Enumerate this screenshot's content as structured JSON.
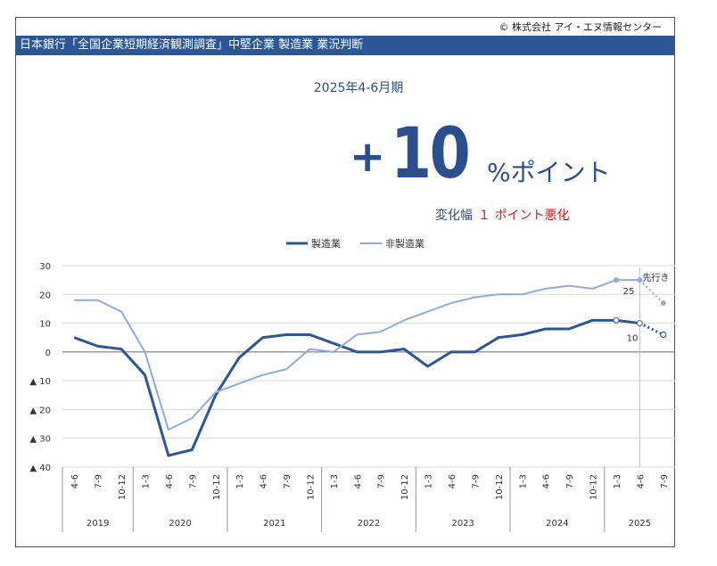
{
  "copyright": "© 株式会社 アイ・エヌ情報センター",
  "header_title": "日本銀行「全国企業短期経済観測調査」中堅企業 製造業 業況判断",
  "headline": {
    "period": "2025年4-6月期",
    "sign": "+",
    "value": "10",
    "unit": "%ポイント",
    "change_label": "変化幅",
    "change_value": "１ ポイント悪化"
  },
  "colors": {
    "header_bg": "#2b5797",
    "manufacturing": "#2e5597",
    "non_manufacturing": "#8faadc",
    "deterioration": "#d9141c"
  },
  "chart_data": {
    "type": "line",
    "ylim": [
      -40,
      30
    ],
    "yticks": [
      30,
      20,
      10,
      0,
      -10,
      -20,
      -30,
      -40
    ],
    "ytick_labels": [
      "30",
      "20",
      "10",
      "0",
      "▲ 10",
      "▲ 20",
      "▲ 30",
      "▲ 40"
    ],
    "categories": [
      "4-6",
      "7-9",
      "10-12",
      "1-3",
      "4-6",
      "7-9",
      "10-12",
      "1-3",
      "4-6",
      "7-9",
      "10-12",
      "1-3",
      "4-6",
      "7-9",
      "10-12",
      "1-3",
      "4-6",
      "7-9",
      "10-12",
      "1-3",
      "4-6",
      "7-9",
      "10-12",
      "1-3",
      "4-6",
      "7-9"
    ],
    "year_groups": [
      {
        "label": "2019",
        "count": 3
      },
      {
        "label": "2020",
        "count": 4
      },
      {
        "label": "2021",
        "count": 4
      },
      {
        "label": "2022",
        "count": 4
      },
      {
        "label": "2023",
        "count": 4
      },
      {
        "label": "2024",
        "count": 4
      },
      {
        "label": "2025",
        "count": 3
      }
    ],
    "series": [
      {
        "name": "製造業",
        "values": [
          5,
          2,
          1,
          -8,
          -36,
          -34,
          -15,
          -2,
          5,
          6,
          6,
          3,
          0,
          0,
          1,
          -5,
          0,
          0,
          5,
          6,
          8,
          8,
          11,
          11,
          10,
          null
        ],
        "forecast": 6
      },
      {
        "name": "非製造業",
        "values": [
          18,
          18,
          14,
          0,
          -27,
          -23,
          -14,
          -11,
          -8,
          -6,
          1,
          0,
          6,
          7,
          11,
          14,
          17,
          19,
          20,
          20,
          22,
          23,
          22,
          25,
          25,
          null
        ],
        "forecast": 17
      }
    ],
    "annotations": {
      "forecast_label": "先行き",
      "manufacturing_current_label": "10",
      "non_manufacturing_current_label": "25"
    },
    "legend_position": "top-center",
    "grid": true
  }
}
